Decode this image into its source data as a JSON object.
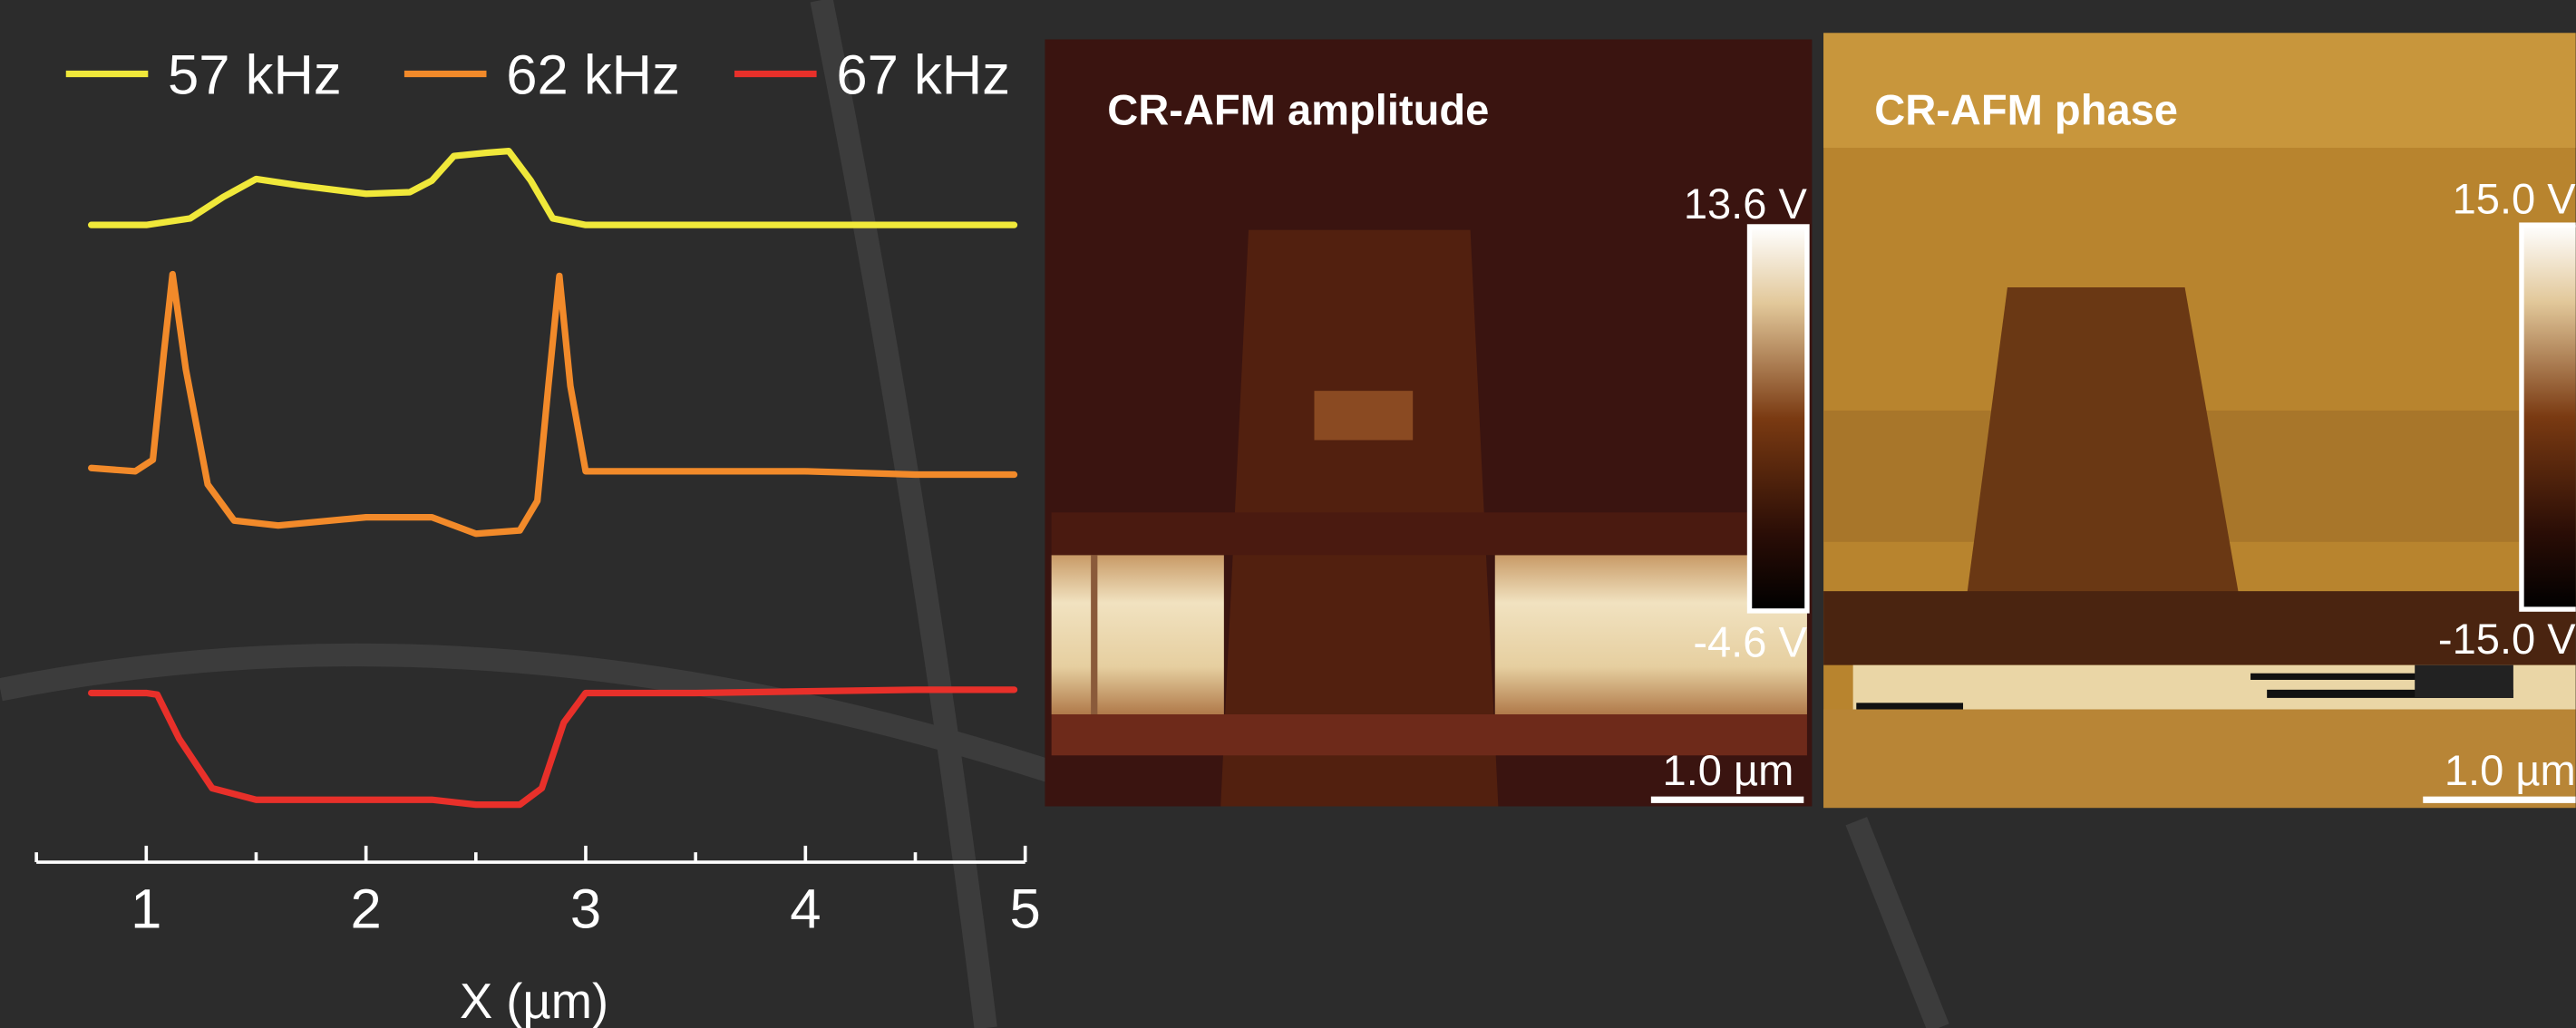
{
  "chart_data": {
    "type": "line",
    "xlabel": "X (µm)",
    "xlim": [
      0.5,
      5
    ],
    "xticks": [
      1,
      2,
      3,
      4,
      5
    ],
    "ylim": [
      0,
      4.5
    ],
    "series": [
      {
        "name": "57 kHz",
        "color": "#f0e83a",
        "x": [
          0.75,
          1.0,
          1.2,
          1.35,
          1.5,
          1.7,
          2.0,
          2.2,
          2.3,
          2.4,
          2.55,
          2.65,
          2.75,
          2.85,
          3.0,
          3.5,
          4.0,
          4.5,
          4.95
        ],
        "values": [
          3.88,
          3.88,
          3.92,
          4.05,
          4.16,
          4.12,
          4.07,
          4.08,
          4.15,
          4.3,
          4.32,
          4.33,
          4.15,
          3.92,
          3.88,
          3.88,
          3.88,
          3.88,
          3.88
        ]
      },
      {
        "name": "62 kHz",
        "color": "#f28a2a",
        "x": [
          0.75,
          0.95,
          1.03,
          1.08,
          1.12,
          1.18,
          1.28,
          1.4,
          1.6,
          2.0,
          2.3,
          2.5,
          2.7,
          2.78,
          2.83,
          2.88,
          2.93,
          3.0,
          3.5,
          4.0,
          4.5,
          4.95
        ],
        "values": [
          2.4,
          2.38,
          2.45,
          3.1,
          3.58,
          3.0,
          2.3,
          2.08,
          2.05,
          2.1,
          2.1,
          2.0,
          2.02,
          2.2,
          2.9,
          3.57,
          2.9,
          2.38,
          2.38,
          2.38,
          2.36,
          2.36
        ]
      },
      {
        "name": "67 kHz",
        "color": "#e8302a",
        "x": [
          0.75,
          1.0,
          1.05,
          1.15,
          1.3,
          1.5,
          2.0,
          2.3,
          2.5,
          2.7,
          2.8,
          2.9,
          3.0,
          3.5,
          4.0,
          4.5,
          4.95
        ],
        "values": [
          1.03,
          1.03,
          1.02,
          0.75,
          0.45,
          0.38,
          0.38,
          0.38,
          0.35,
          0.35,
          0.45,
          0.85,
          1.03,
          1.03,
          1.04,
          1.05,
          1.05
        ]
      }
    ]
  },
  "images": [
    {
      "title": "CR-AFM amplitude",
      "colorbar_max": "13.6 V",
      "colorbar_min": "-4.6 V",
      "scale_bar": "1.0 µm"
    },
    {
      "title": "CR-AFM phase",
      "colorbar_max": "15.0 V",
      "colorbar_min": "-15.0 V",
      "scale_bar": "1.0 µm"
    }
  ]
}
